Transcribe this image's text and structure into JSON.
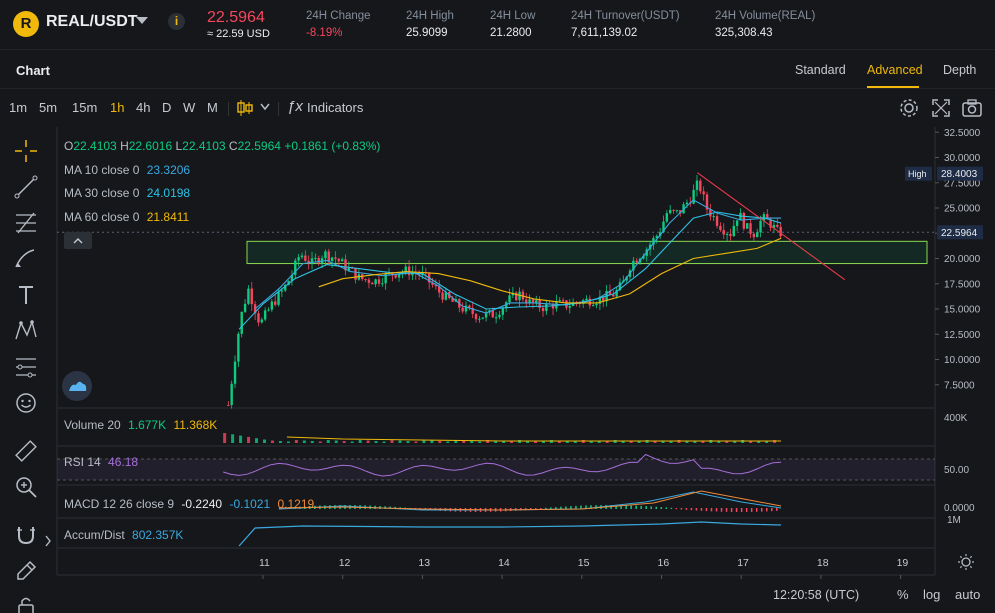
{
  "header": {
    "pair": "REAL/USDT",
    "price": "22.5964",
    "price_usd": "≈ 22.59 USD",
    "stats": [
      {
        "label": "24H Change",
        "value": "-8.19%",
        "neg": true
      },
      {
        "label": "24H High",
        "value": "25.9099"
      },
      {
        "label": "24H Low",
        "value": "21.2800"
      },
      {
        "label": "24H Turnover(USDT)",
        "value": "7,611,139.02"
      },
      {
        "label": "24H Volume(REAL)",
        "value": "325,308.43"
      }
    ]
  },
  "tabs": {
    "chart": "Chart",
    "views": [
      "Standard",
      "Advanced",
      "Depth"
    ],
    "active_view": "Advanced"
  },
  "toolbar": {
    "timeframes": [
      "1m",
      "5m",
      "15m",
      "1h",
      "4h",
      "D",
      "W",
      "M"
    ],
    "active_timeframe": "1h",
    "indicators_label": "Indicators",
    "fx_label": "ƒx"
  },
  "legend": {
    "ohlc": {
      "o_label": "O",
      "o": "22.4103",
      "h_label": "H",
      "h": "22.6016",
      "l_label": "L",
      "l": "22.4103",
      "c_label": "C",
      "c": "22.5964",
      "chg": "+0.1861",
      "chg_pct": "(+0.83%)"
    },
    "ma": [
      {
        "label": "MA 10 close 0",
        "value": "23.3206",
        "color": "#3aa8e0"
      },
      {
        "label": "MA 30 close 0",
        "value": "24.0198",
        "color": "#2bc3e6"
      },
      {
        "label": "MA 60 close 0",
        "value": "21.8411",
        "color": "#f0b90b"
      }
    ]
  },
  "indicators": {
    "volume": {
      "label": "Volume 20",
      "v1": "1.677K",
      "v2": "11.368K"
    },
    "rsi": {
      "label": "RSI 14",
      "value": "46.18"
    },
    "macd": {
      "label": "MACD 12 26 close 9",
      "v1": "-0.2240",
      "v2": "-0.1021",
      "v3": "0.1219"
    },
    "accum": {
      "label": "Accum/Dist",
      "value": "802.357K"
    }
  },
  "price_axis": {
    "ticks": [
      "32.5000",
      "30.0000",
      "27.5000",
      "25.0000",
      "22.5000",
      "20.0000",
      "17.5000",
      "15.0000",
      "12.5000",
      "10.0000",
      "7.5000"
    ],
    "high_tag": "High",
    "high_value": "28.4003",
    "current_value": "22.5964",
    "volume_tick": "400K",
    "rsi_tick": "50.00",
    "macd_tick": "0.0000",
    "accum_tick": "1M"
  },
  "time_axis": {
    "ticks": [
      "11",
      "12",
      "13",
      "14",
      "15",
      "16",
      "17",
      "18",
      "19"
    ]
  },
  "footer": {
    "clock": "12:20:58 (UTC)",
    "percent": "%",
    "log": "log",
    "auto": "auto"
  },
  "chart_data": {
    "type": "candlestick",
    "x_ticks": [
      "11",
      "12",
      "13",
      "14",
      "15",
      "16",
      "17",
      "18",
      "19"
    ],
    "y_range": [
      5,
      33.5
    ],
    "y_ticks": [
      7.5,
      10,
      12.5,
      15,
      17.5,
      20,
      22.5,
      25,
      27.5,
      30,
      32.5
    ],
    "price_path": [
      [
        10.55,
        5.5
      ],
      [
        10.7,
        14
      ],
      [
        10.8,
        17
      ],
      [
        10.95,
        13.5
      ],
      [
        11.1,
        15.5
      ],
      [
        11.25,
        17
      ],
      [
        11.35,
        18.5
      ],
      [
        11.45,
        20.5
      ],
      [
        11.6,
        19.5
      ],
      [
        11.75,
        20.5
      ],
      [
        11.9,
        20
      ],
      [
        12.05,
        19
      ],
      [
        12.2,
        18
      ],
      [
        12.4,
        17.8
      ],
      [
        12.6,
        18.5
      ],
      [
        12.8,
        18.8
      ],
      [
        13.0,
        18.3
      ],
      [
        13.15,
        17
      ],
      [
        13.3,
        16
      ],
      [
        13.5,
        15
      ],
      [
        13.7,
        14.3
      ],
      [
        13.9,
        14.5
      ],
      [
        14.05,
        15.8
      ],
      [
        14.2,
        16.5
      ],
      [
        14.35,
        15.5
      ],
      [
        14.5,
        15.2
      ],
      [
        14.65,
        15.5
      ],
      [
        14.8,
        15.4
      ],
      [
        15.0,
        15.8
      ],
      [
        15.2,
        16
      ],
      [
        15.4,
        16.5
      ],
      [
        15.5,
        17.5
      ],
      [
        15.6,
        19.5
      ],
      [
        15.8,
        21
      ],
      [
        15.95,
        22.5
      ],
      [
        16.05,
        24.5
      ],
      [
        16.2,
        24.5
      ],
      [
        16.35,
        26
      ],
      [
        16.45,
        27.5
      ],
      [
        16.55,
        25
      ],
      [
        16.65,
        24
      ],
      [
        16.75,
        23
      ],
      [
        16.85,
        22.5
      ],
      [
        16.95,
        24.5
      ],
      [
        17.05,
        23
      ],
      [
        17.15,
        22.5
      ],
      [
        17.25,
        24
      ],
      [
        17.35,
        23.5
      ],
      [
        17.45,
        22.5
      ],
      [
        17.5,
        22.6
      ]
    ],
    "ma10": [
      [
        10.9,
        15
      ],
      [
        11.2,
        17
      ],
      [
        11.5,
        19.5
      ],
      [
        11.8,
        19.8
      ],
      [
        12.1,
        18.7
      ],
      [
        12.5,
        18.3
      ],
      [
        12.9,
        18.6
      ],
      [
        13.2,
        17.3
      ],
      [
        13.5,
        15.3
      ],
      [
        13.8,
        14.6
      ],
      [
        14.1,
        15.6
      ],
      [
        14.4,
        15.6
      ],
      [
        14.8,
        15.4
      ],
      [
        15.2,
        16
      ],
      [
        15.5,
        17.5
      ],
      [
        15.8,
        20.5
      ],
      [
        16.1,
        23.5
      ],
      [
        16.4,
        25.8
      ],
      [
        16.7,
        24.5
      ],
      [
        17.0,
        23.8
      ],
      [
        17.3,
        24
      ],
      [
        17.5,
        24
      ]
    ],
    "ma30": [
      [
        10.7,
        13
      ],
      [
        11.0,
        15.5
      ],
      [
        11.4,
        18
      ],
      [
        11.8,
        19.4
      ],
      [
        12.2,
        19
      ],
      [
        12.6,
        18.6
      ],
      [
        13.0,
        18.5
      ],
      [
        13.4,
        16.5
      ],
      [
        13.8,
        15
      ],
      [
        14.2,
        15.2
      ],
      [
        14.6,
        15.3
      ],
      [
        15.0,
        15.6
      ],
      [
        15.4,
        16.5
      ],
      [
        15.8,
        19
      ],
      [
        16.1,
        21.5
      ],
      [
        16.4,
        24
      ],
      [
        16.7,
        24.6
      ],
      [
        17.0,
        24.2
      ],
      [
        17.3,
        24
      ],
      [
        17.5,
        23.5
      ]
    ],
    "ma60": [
      [
        11.7,
        17.2
      ],
      [
        12.0,
        18
      ],
      [
        12.4,
        18.4
      ],
      [
        12.8,
        18.7
      ],
      [
        13.2,
        18.5
      ],
      [
        13.6,
        17.8
      ],
      [
        14.0,
        16.8
      ],
      [
        14.4,
        16
      ],
      [
        14.8,
        15.6
      ],
      [
        15.2,
        15.6
      ],
      [
        15.6,
        16.5
      ],
      [
        16.0,
        18.5
      ],
      [
        16.4,
        20
      ],
      [
        16.8,
        20.5
      ],
      [
        17.2,
        21
      ],
      [
        17.5,
        22
      ]
    ],
    "zone": {
      "y_low": 19.5,
      "y_high": 21.7,
      "x_from": 10.8,
      "x_to": 19.3
    },
    "trendline": {
      "from": [
        16.45,
        28.5
      ],
      "to": [
        18.3,
        17.9
      ]
    },
    "high_marker": 28.4003,
    "current_price": 22.5964
  }
}
